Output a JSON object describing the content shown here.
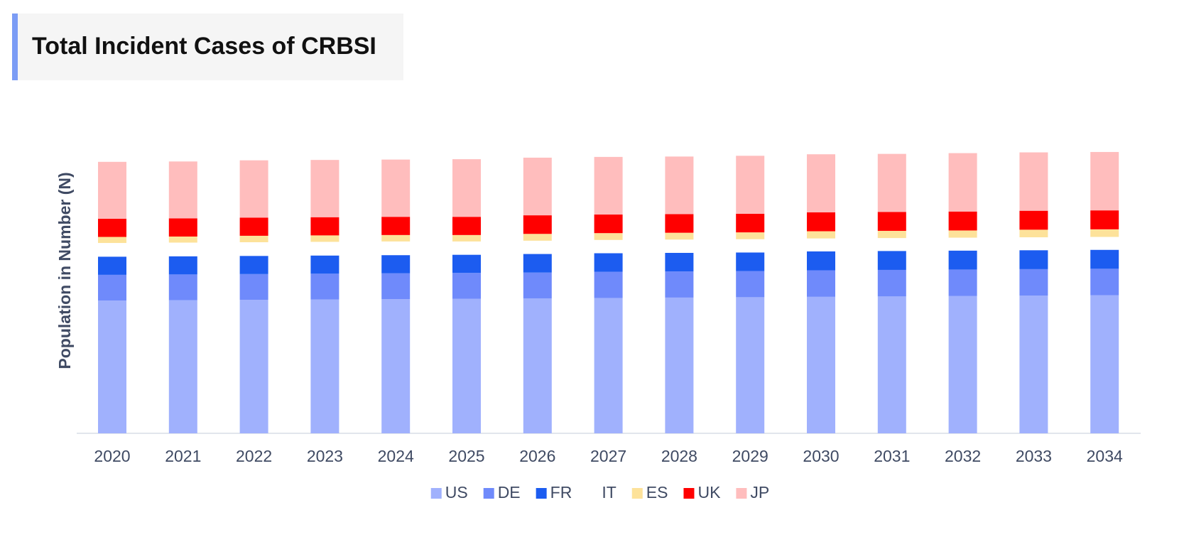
{
  "chart_data": {
    "type": "stacked-bar",
    "title": "Total Incident Cases of CRBSI",
    "y_label": "Population in Number (N)",
    "categories": [
      "2020",
      "2021",
      "2022",
      "2023",
      "2024",
      "2025",
      "2026",
      "2027",
      "2028",
      "2029",
      "2030",
      "2031",
      "2032",
      "2033",
      "2034"
    ],
    "ylim": [
      0,
      400
    ],
    "series": [
      {
        "name": "US",
        "color": "#a0b1fd",
        "values": [
          175,
          175.5,
          176,
          176.5,
          177,
          177.5,
          178,
          178.5,
          179,
          179.5,
          180,
          180.5,
          181,
          181.5,
          182
        ]
      },
      {
        "name": "DE",
        "color": "#6f8afb",
        "values": [
          34,
          34,
          34,
          34,
          34,
          34,
          34,
          34.5,
          34.5,
          34.5,
          35,
          35,
          35,
          35,
          35
        ]
      },
      {
        "name": "FR",
        "color": "#1c5cf0",
        "values": [
          24,
          24,
          24,
          24,
          24,
          24,
          24.5,
          24.5,
          24.5,
          24.5,
          25,
          25,
          25,
          25,
          25
        ]
      },
      {
        "name": "IT",
        "color": "#ffffff",
        "values": [
          18,
          18,
          18,
          18,
          18,
          17.5,
          17.5,
          17.5,
          17.5,
          17.5,
          17,
          17,
          17,
          17,
          17
        ]
      },
      {
        "name": "ES",
        "color": "#fde29a",
        "values": [
          8,
          8,
          8.5,
          8.5,
          8.5,
          8.5,
          9,
          9,
          9,
          9,
          9.5,
          9.5,
          9.5,
          10,
          10
        ]
      },
      {
        "name": "UK",
        "color": "#ff0000",
        "values": [
          24,
          24,
          24,
          24,
          24,
          24,
          24.5,
          24.5,
          24.5,
          24.5,
          25,
          25,
          25,
          25,
          25
        ]
      },
      {
        "name": "JP",
        "color": "#ffbdbd",
        "values": [
          75,
          75,
          75.5,
          75.5,
          75.5,
          76,
          76,
          76,
          76,
          76.5,
          76.5,
          76.5,
          77,
          77,
          77
        ]
      }
    ]
  }
}
